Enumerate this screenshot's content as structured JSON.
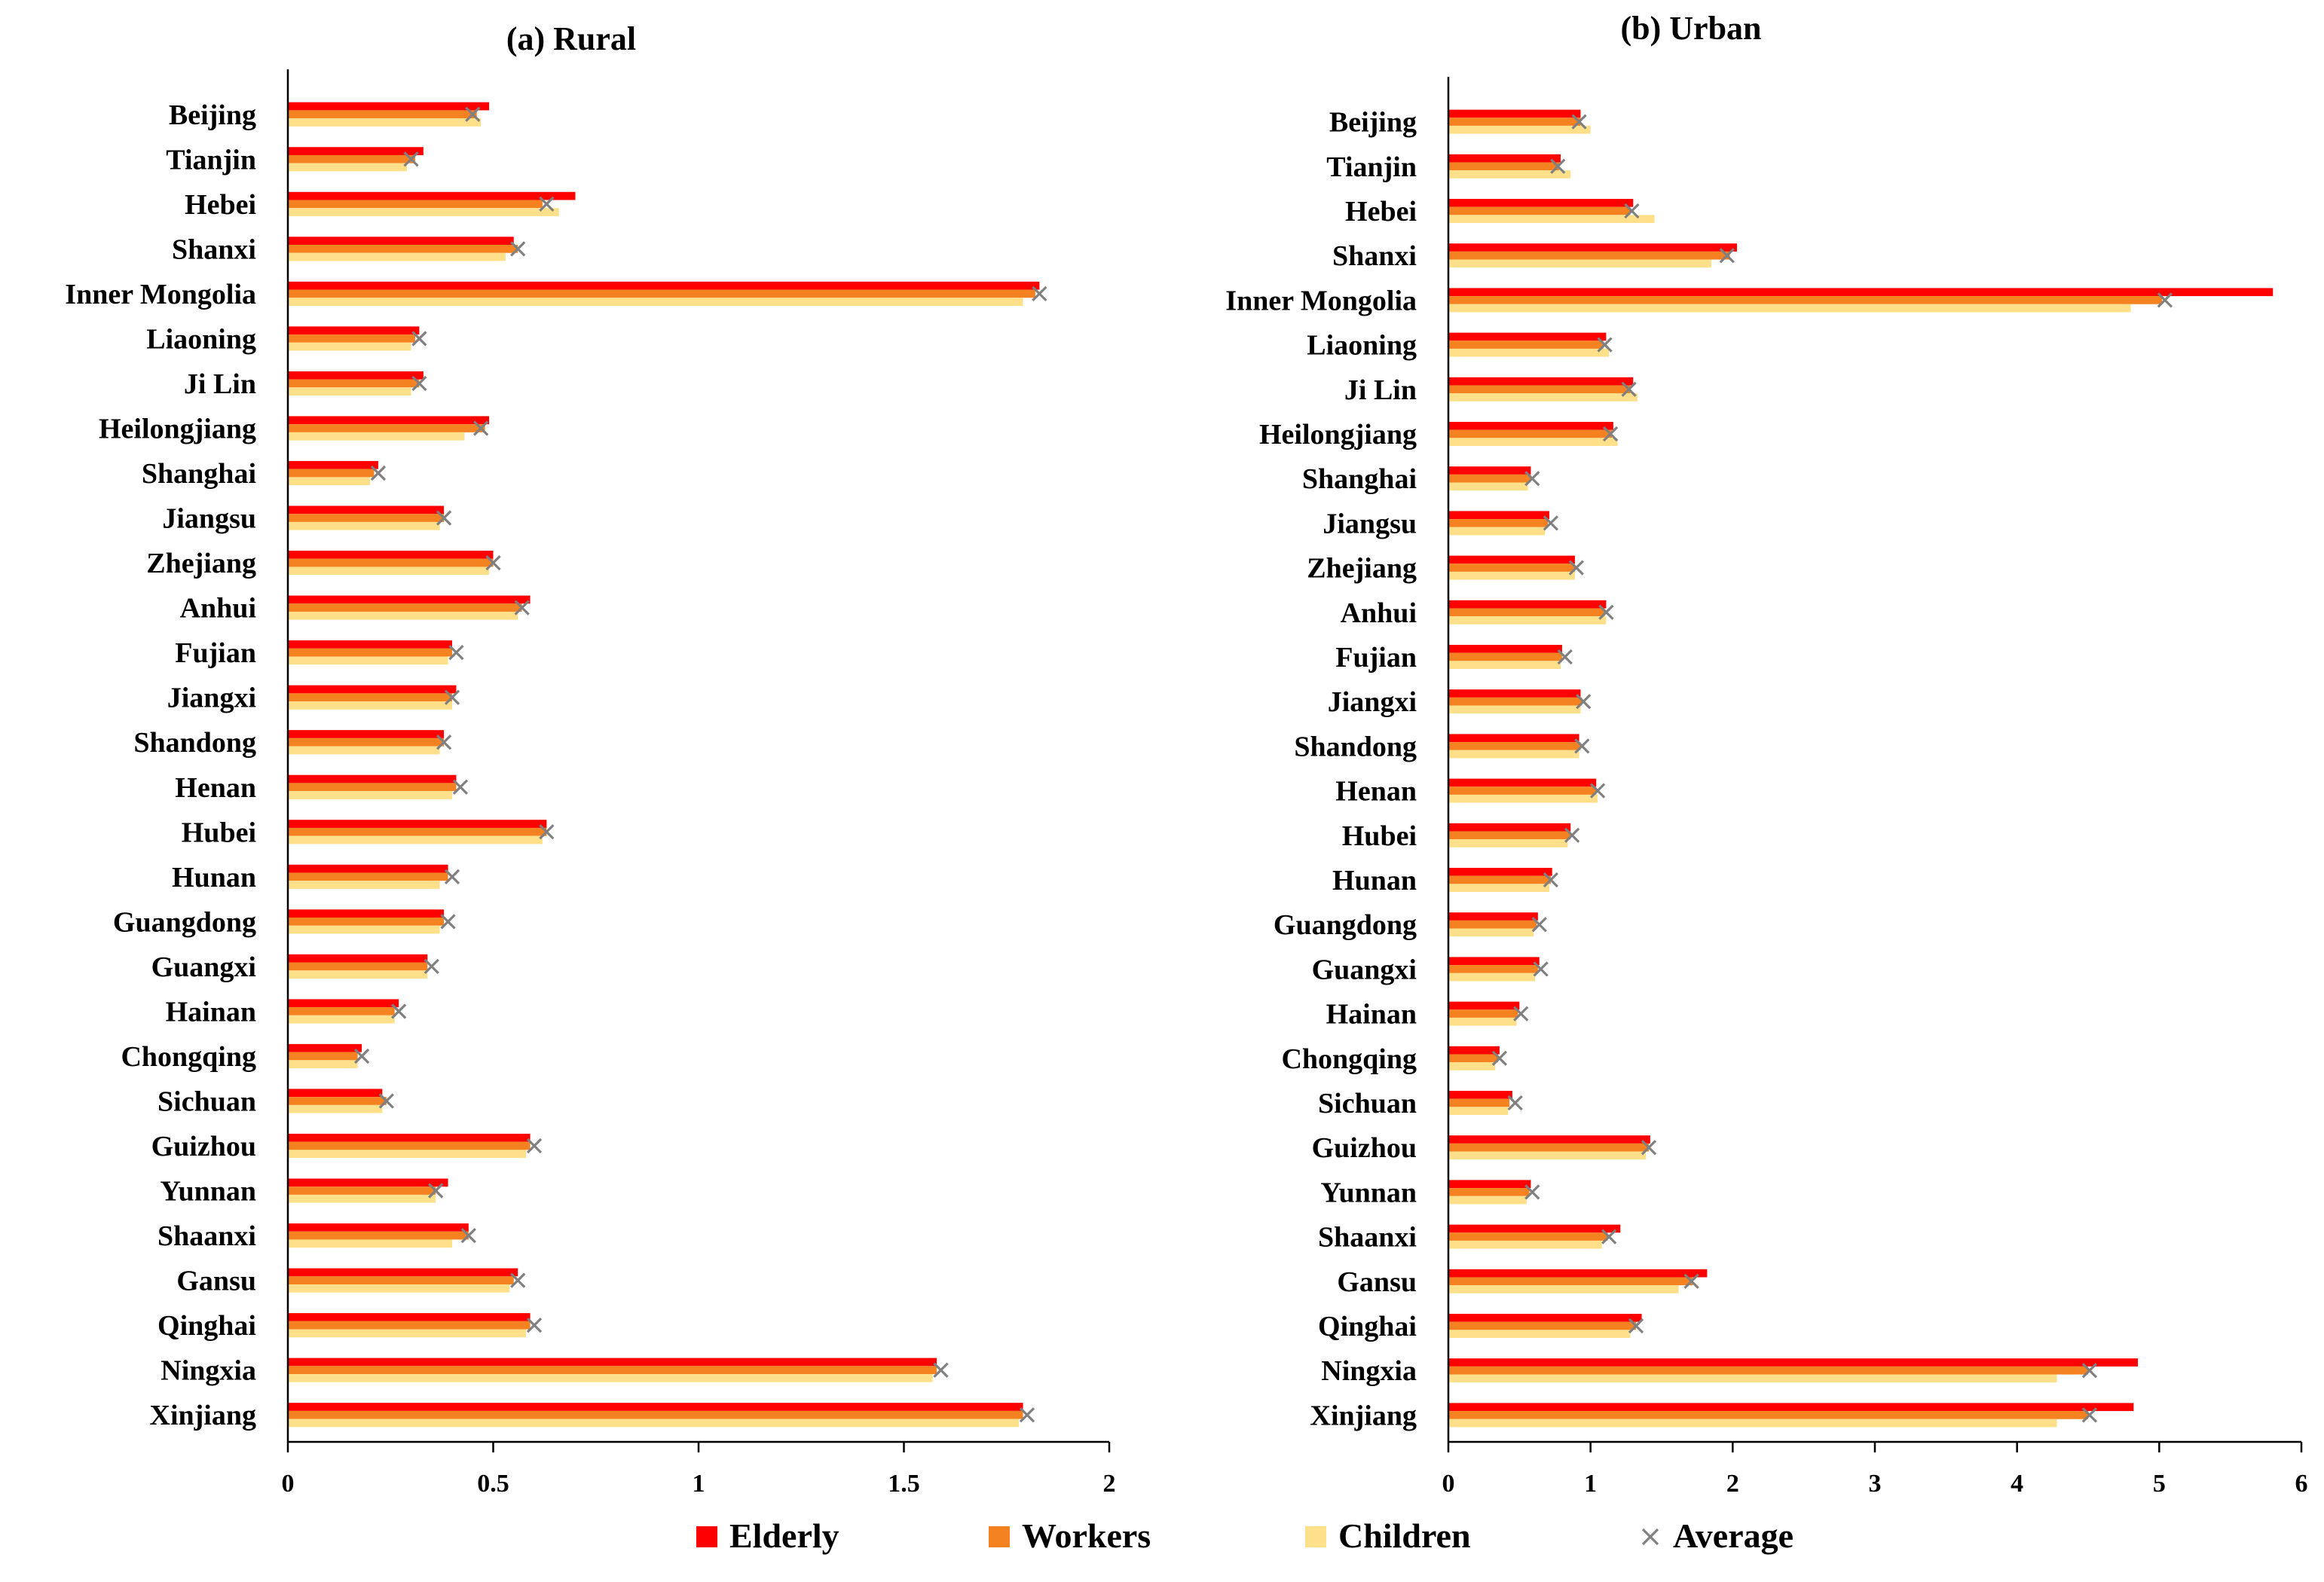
{
  "chart_data": [
    {
      "type": "bar",
      "orientation": "horizontal",
      "title": "(a) Rural",
      "xlabel": "",
      "ylabel": "",
      "xlim": [
        0,
        2
      ],
      "xticks": [
        "0",
        "0.5",
        "1",
        "1.5",
        "2"
      ],
      "xtick_values": [
        0,
        0.5,
        1,
        1.5,
        2
      ],
      "categories": [
        "Beijing",
        "Tianjin",
        "Hebei",
        "Shanxi",
        "Inner Mongolia",
        "Liaoning",
        "Ji Lin",
        "Heilongjiang",
        "Shanghai",
        "Jiangsu",
        "Zhejiang",
        "Anhui",
        "Fujian",
        "Jiangxi",
        "Shandong",
        "Henan",
        "Hubei",
        "Hunan",
        "Guangdong",
        "Guangxi",
        "Hainan",
        "Chongqing",
        "Sichuan",
        "Guizhou",
        "Yunnan",
        "Shaanxi",
        "Gansu",
        "Qinghai",
        "Ningxia",
        "Xinjiang"
      ],
      "series": [
        {
          "name": "Elderly",
          "color": "#ff0000",
          "values": [
            0.49,
            0.33,
            0.7,
            0.55,
            1.83,
            0.32,
            0.33,
            0.49,
            0.22,
            0.38,
            0.5,
            0.59,
            0.4,
            0.41,
            0.38,
            0.41,
            0.63,
            0.39,
            0.38,
            0.34,
            0.27,
            0.18,
            0.23,
            0.59,
            0.39,
            0.44,
            0.56,
            0.59,
            1.58,
            1.79
          ]
        },
        {
          "name": "Workers",
          "color": "#f58220",
          "values": [
            0.46,
            0.31,
            0.62,
            0.56,
            1.82,
            0.31,
            0.32,
            0.48,
            0.21,
            0.38,
            0.5,
            0.57,
            0.4,
            0.4,
            0.38,
            0.41,
            0.63,
            0.39,
            0.38,
            0.34,
            0.26,
            0.17,
            0.24,
            0.59,
            0.36,
            0.44,
            0.55,
            0.59,
            1.58,
            1.79
          ]
        },
        {
          "name": "Children",
          "color": "#ffe08a",
          "values": [
            0.47,
            0.29,
            0.66,
            0.53,
            1.79,
            0.3,
            0.3,
            0.43,
            0.2,
            0.37,
            0.49,
            0.56,
            0.39,
            0.4,
            0.37,
            0.4,
            0.62,
            0.37,
            0.37,
            0.34,
            0.26,
            0.17,
            0.23,
            0.58,
            0.36,
            0.4,
            0.54,
            0.58,
            1.57,
            1.78
          ]
        },
        {
          "name": "Average",
          "color": "#808080",
          "marker": "x",
          "values": [
            0.45,
            0.3,
            0.63,
            0.56,
            1.83,
            0.32,
            0.32,
            0.47,
            0.22,
            0.38,
            0.5,
            0.57,
            0.41,
            0.4,
            0.38,
            0.42,
            0.63,
            0.4,
            0.39,
            0.35,
            0.27,
            0.18,
            0.24,
            0.6,
            0.36,
            0.44,
            0.56,
            0.6,
            1.59,
            1.8
          ]
        }
      ]
    },
    {
      "type": "bar",
      "orientation": "horizontal",
      "title": "(b) Urban",
      "xlabel": "",
      "ylabel": "",
      "xlim": [
        0,
        6
      ],
      "xticks": [
        "0",
        "1",
        "2",
        "3",
        "4",
        "5",
        "6"
      ],
      "xtick_values": [
        0,
        1,
        2,
        3,
        4,
        5,
        6
      ],
      "categories": [
        "Beijing",
        "Tianjin",
        "Hebei",
        "Shanxi",
        "Inner Mongolia",
        "Liaoning",
        "Ji Lin",
        "Heilongjiang",
        "Shanghai",
        "Jiangsu",
        "Zhejiang",
        "Anhui",
        "Fujian",
        "Jiangxi",
        "Shandong",
        "Henan",
        "Hubei",
        "Hunan",
        "Guangdong",
        "Guangxi",
        "Hainan",
        "Chongqing",
        "Sichuan",
        "Guizhou",
        "Yunnan",
        "Shaanxi",
        "Gansu",
        "Qinghai",
        "Ningxia",
        "Xinjiang"
      ],
      "series": [
        {
          "name": "Elderly",
          "color": "#ff0000",
          "values": [
            0.93,
            0.79,
            1.3,
            2.03,
            5.8,
            1.11,
            1.3,
            1.16,
            0.58,
            0.71,
            0.89,
            1.11,
            0.8,
            0.93,
            0.92,
            1.04,
            0.86,
            0.73,
            0.63,
            0.64,
            0.5,
            0.36,
            0.45,
            1.42,
            0.58,
            1.21,
            1.82,
            1.36,
            4.85,
            4.82
          ]
        },
        {
          "name": "Workers",
          "color": "#f58220",
          "values": [
            0.93,
            0.78,
            1.28,
            1.98,
            5.02,
            1.09,
            1.28,
            1.15,
            0.58,
            0.7,
            0.89,
            1.1,
            0.8,
            0.94,
            0.93,
            1.04,
            0.86,
            0.72,
            0.62,
            0.63,
            0.49,
            0.35,
            0.43,
            1.41,
            0.57,
            1.12,
            1.72,
            1.32,
            4.5,
            4.5
          ]
        },
        {
          "name": "Children",
          "color": "#ffe08a",
          "values": [
            1.0,
            0.86,
            1.45,
            1.85,
            4.8,
            1.13,
            1.33,
            1.19,
            0.56,
            0.68,
            0.89,
            1.11,
            0.79,
            0.93,
            0.92,
            1.05,
            0.84,
            0.71,
            0.6,
            0.61,
            0.48,
            0.33,
            0.42,
            1.39,
            0.55,
            1.08,
            1.62,
            1.28,
            4.28,
            4.28
          ]
        },
        {
          "name": "Average",
          "color": "#808080",
          "marker": "x",
          "values": [
            0.92,
            0.77,
            1.29,
            1.96,
            5.04,
            1.1,
            1.27,
            1.14,
            0.59,
            0.72,
            0.9,
            1.11,
            0.82,
            0.95,
            0.94,
            1.05,
            0.87,
            0.72,
            0.64,
            0.65,
            0.51,
            0.36,
            0.47,
            1.41,
            0.59,
            1.13,
            1.71,
            1.32,
            4.51,
            4.51
          ]
        }
      ]
    }
  ],
  "legend": {
    "placement": "bottom-center",
    "items": [
      {
        "label": "Elderly",
        "color": "#ff0000",
        "symbol": "square"
      },
      {
        "label": "Workers",
        "color": "#f58220",
        "symbol": "square"
      },
      {
        "label": "Children",
        "color": "#ffe08a",
        "symbol": "square"
      },
      {
        "label": "Average",
        "color": "#808080",
        "symbol": "x"
      }
    ]
  }
}
